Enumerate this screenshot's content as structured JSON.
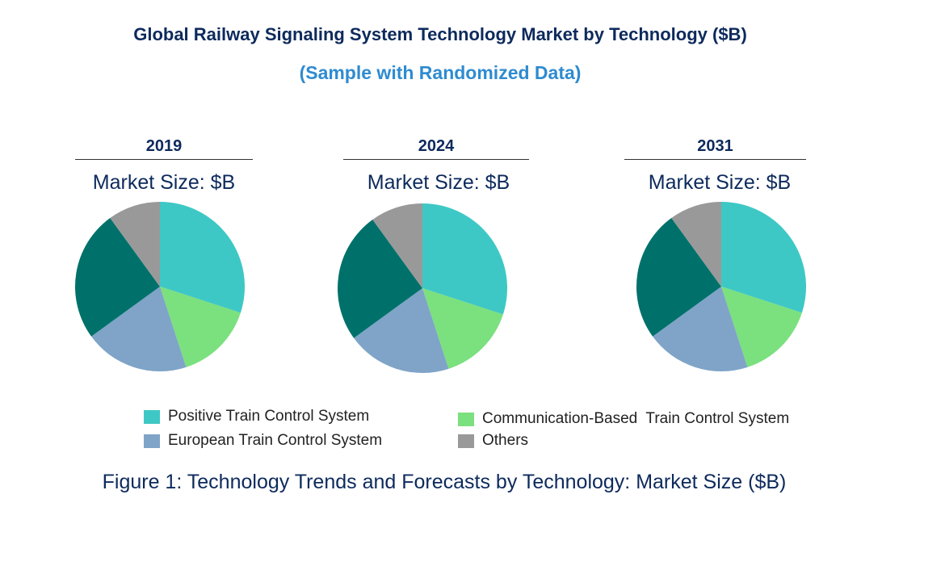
{
  "title": "Global Railway Signaling System Technology Market by Technology ($B)",
  "subtitle": "(Sample with Randomized Data)",
  "caption": "Figure 1: Technology Trends and Forecasts by Technology: Market Size ($B)",
  "chart_data": {
    "type": "pie",
    "series_names": [
      "Positive Train Control System",
      "Communication-Based  Train Control System",
      "European Train Control System",
      "",
      "Others"
    ],
    "colors": [
      "#3ec8c5",
      "#7be07e",
      "#7fa4c8",
      "#00716a",
      "#999999"
    ],
    "pies": [
      {
        "year": "2019",
        "label": "Market Size: $B",
        "values": [
          30,
          15,
          20,
          25,
          10
        ]
      },
      {
        "year": "2024",
        "label": "Market Size: $B",
        "values": [
          30,
          15,
          20,
          25,
          10
        ]
      },
      {
        "year": "2031",
        "label": "Market Size: $B",
        "values": [
          30,
          15,
          20,
          25,
          10
        ]
      }
    ],
    "legend": [
      {
        "name": "Positive Train Control System",
        "color": "#3ec8c5"
      },
      {
        "name": "Communication-Based  Train Control System",
        "color": "#7be07e"
      },
      {
        "name": "European Train Control System",
        "color": "#7fa4c8"
      },
      {
        "name": "Others",
        "color": "#999999"
      }
    ],
    "legend_position": "bottom"
  }
}
